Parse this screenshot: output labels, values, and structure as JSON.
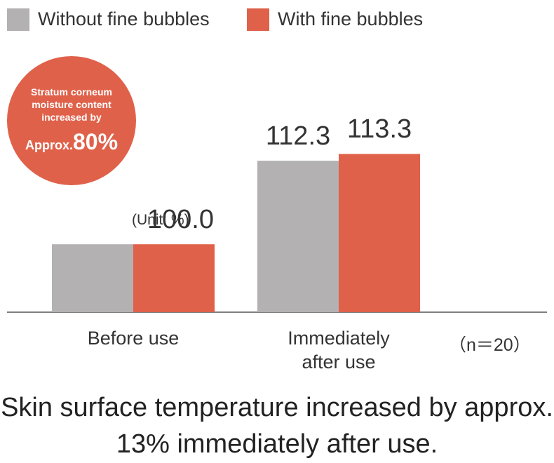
{
  "chart_data": {
    "type": "bar",
    "categories": [
      "Before use",
      "Immediately after use"
    ],
    "series": [
      {
        "name": "Without fine bubbles",
        "color": "#b3b1b2",
        "values": [
          100,
          112.3
        ],
        "value_labels": [
          "100.0",
          "112.3"
        ]
      },
      {
        "name": "With fine bubbles",
        "color": "#e0614a",
        "values": [
          100,
          113.3
        ],
        "value_labels": [
          null,
          "113.3"
        ]
      }
    ],
    "ylim": [
      90,
      115
    ],
    "unit": "(Unit: %)",
    "sample_size": "（n＝20）",
    "badge": {
      "text": "Stratum corneum moisture content increased by",
      "prefix": "Approx.",
      "value": "80%"
    },
    "caption": "Skin surface temperature increased by approx. 13% immediately after use."
  }
}
